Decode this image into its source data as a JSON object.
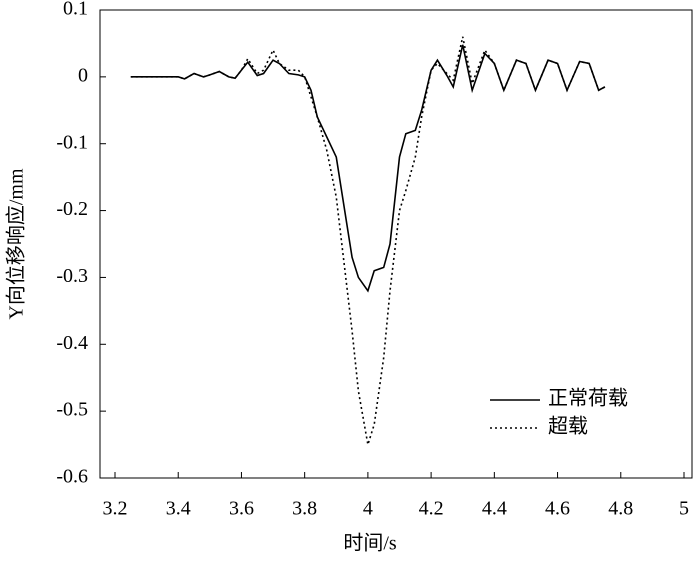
{
  "chart_data": {
    "type": "line",
    "xlabel": "时间/s",
    "ylabel": "Y向位移响应/mm",
    "x": [
      3.25,
      3.3,
      3.35,
      3.4,
      3.42,
      3.45,
      3.48,
      3.5,
      3.53,
      3.56,
      3.58,
      3.6,
      3.62,
      3.65,
      3.67,
      3.7,
      3.72,
      3.75,
      3.78,
      3.8,
      3.82,
      3.84,
      3.87,
      3.9,
      3.92,
      3.95,
      3.97,
      4.0,
      4.02,
      4.05,
      4.07,
      4.1,
      4.12,
      4.15,
      4.17,
      4.2,
      4.22,
      4.25,
      4.27,
      4.3,
      4.33,
      4.37,
      4.4,
      4.43,
      4.47,
      4.5,
      4.53,
      4.57,
      4.6,
      4.63,
      4.67,
      4.7,
      4.73,
      4.75
    ],
    "series": [
      {
        "name": "正常荷载",
        "color": "#000000",
        "dash": "solid",
        "values": [
          0,
          0,
          0,
          0,
          -0.003,
          0.005,
          0,
          0.003,
          0.008,
          0,
          -0.002,
          0.01,
          0.022,
          0.002,
          0.005,
          0.025,
          0.02,
          0.005,
          0.003,
          0,
          -0.02,
          -0.06,
          -0.09,
          -0.12,
          -0.18,
          -0.27,
          -0.3,
          -0.32,
          -0.29,
          -0.285,
          -0.25,
          -0.12,
          -0.085,
          -0.08,
          -0.05,
          0.01,
          0.025,
          0.002,
          -0.015,
          0.048,
          -0.02,
          0.035,
          0.02,
          -0.02,
          0.025,
          0.02,
          -0.02,
          0.025,
          0.02,
          -0.02,
          0.023,
          0.02,
          -0.02,
          -0.015
        ]
      },
      {
        "name": "超载",
        "color": "#000000",
        "dash": "dotted",
        "values": [
          0,
          0,
          0,
          0,
          -0.003,
          0.005,
          0,
          0.003,
          0.008,
          0,
          -0.002,
          0.01,
          0.027,
          0.005,
          0.01,
          0.04,
          0.02,
          0.01,
          0.01,
          0,
          -0.03,
          -0.06,
          -0.11,
          -0.18,
          -0.26,
          -0.38,
          -0.47,
          -0.55,
          -0.52,
          -0.42,
          -0.32,
          -0.2,
          -0.17,
          -0.12,
          -0.06,
          0.01,
          0.02,
          0.005,
          -0.005,
          0.06,
          -0.01,
          0.04,
          0.02,
          -0.02,
          0.025,
          0.02,
          -0.02,
          0.025,
          0.02,
          -0.02,
          0.023,
          0.02,
          -0.02,
          -0.015
        ]
      }
    ],
    "xlim": [
      3.2,
      5
    ],
    "ylim": [
      -0.6,
      0.1
    ],
    "xticks": [
      3.2,
      3.4,
      3.6,
      3.8,
      4,
      4.2,
      4.4,
      4.6,
      4.8,
      5
    ],
    "yticks": [
      0.1,
      0,
      -0.1,
      -0.2,
      -0.3,
      -0.4,
      -0.5,
      -0.6
    ],
    "grid": false,
    "legend": "lower right"
  }
}
